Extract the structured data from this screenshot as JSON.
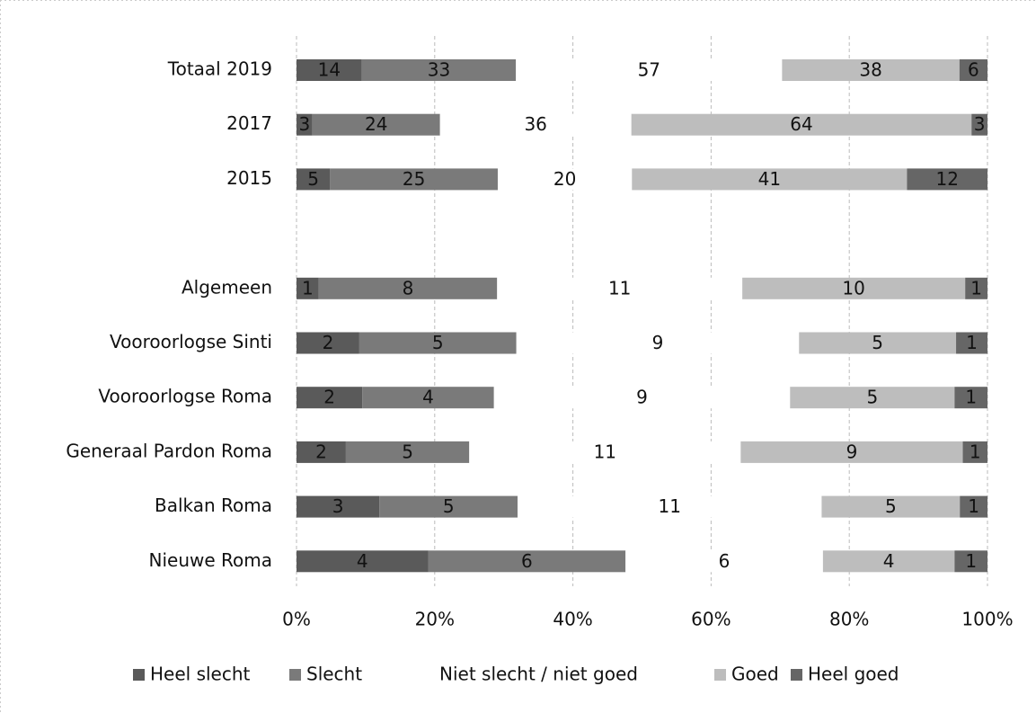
{
  "chart_data": {
    "type": "bar",
    "orientation": "horizontal",
    "stacked": "percent",
    "categories": [
      "Totaal 2019",
      "2017",
      "2015",
      null,
      "Algemeen",
      "Vooroorlogse Sinti",
      "Vooroorlogse Roma",
      "Generaal Pardon Roma",
      "Balkan Roma",
      "Nieuwe Roma"
    ],
    "series": [
      {
        "name": "Heel slecht",
        "color": "#5a5a5a",
        "values": [
          14,
          3,
          5,
          null,
          1,
          2,
          2,
          2,
          3,
          4
        ]
      },
      {
        "name": "Slecht",
        "color": "#7a7a7a",
        "values": [
          33,
          24,
          25,
          null,
          8,
          5,
          4,
          5,
          5,
          6
        ]
      },
      {
        "name": "Niet slecht / niet goed",
        "color": "#ffffff",
        "values": [
          57,
          36,
          20,
          null,
          11,
          9,
          9,
          11,
          11,
          6
        ]
      },
      {
        "name": "Goed",
        "color": "#bdbdbd",
        "values": [
          38,
          64,
          41,
          null,
          10,
          5,
          5,
          9,
          5,
          4
        ]
      },
      {
        "name": "Heel goed",
        "color": "#666666",
        "values": [
          6,
          3,
          12,
          null,
          1,
          1,
          1,
          1,
          1,
          1
        ]
      }
    ],
    "xlim": [
      0,
      100
    ],
    "xticks": [
      {
        "value": 0,
        "label": "0%"
      },
      {
        "value": 20,
        "label": "20%"
      },
      {
        "value": 40,
        "label": "40%"
      },
      {
        "value": 60,
        "label": "60%"
      },
      {
        "value": 80,
        "label": "80%"
      },
      {
        "value": 100,
        "label": "100%"
      }
    ],
    "grid": true,
    "legend": "bottom"
  }
}
